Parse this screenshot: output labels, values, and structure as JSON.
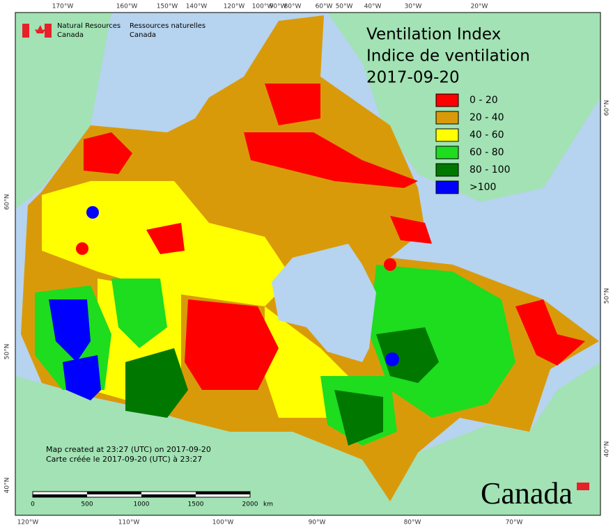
{
  "agency": {
    "en_1": "Natural Resources",
    "en_2": "Canada",
    "fr_1": "Ressources naturelles",
    "fr_2": "Canada"
  },
  "title": {
    "en": "Ventilation Index",
    "fr": "Indice de ventilation",
    "date": "2017-09-20"
  },
  "legend": [
    {
      "label": "0 - 20",
      "color": "#ff0000"
    },
    {
      "label": "20 - 40",
      "color": "#d99a0a"
    },
    {
      "label": "40 - 60",
      "color": "#ffff00"
    },
    {
      "label": "60 - 80",
      "color": "#1edc1e"
    },
    {
      "label": "80 - 100",
      "color": "#007800"
    },
    {
      "label": ">100",
      "color": "#0000ff"
    }
  ],
  "top_longitudes": [
    "170°W",
    "160°W",
    "150°W",
    "140°W",
    "120°W",
    "100°W",
    "90°W",
    "80°W",
    "60°W",
    "50°W",
    "40°W",
    "30°W",
    "20°W"
  ],
  "bottom_longitudes": [
    "120°W",
    "110°W",
    "100°W",
    "90°W",
    "80°W",
    "70°W"
  ],
  "left_latitudes": [
    "60°N",
    "50°N",
    "40°N"
  ],
  "right_latitudes": [
    "60°N",
    "50°N",
    "40°N"
  ],
  "scale_bar": {
    "labels": [
      "0",
      "500",
      "1000",
      "1500",
      "2000"
    ],
    "unit": "km"
  },
  "credits": {
    "en": "Map created at 23:27 (UTC) on 2017-09-20",
    "fr": "Carte créée le 2017-09-20 (UTC) à 23:27"
  },
  "wordmark": "Canada"
}
